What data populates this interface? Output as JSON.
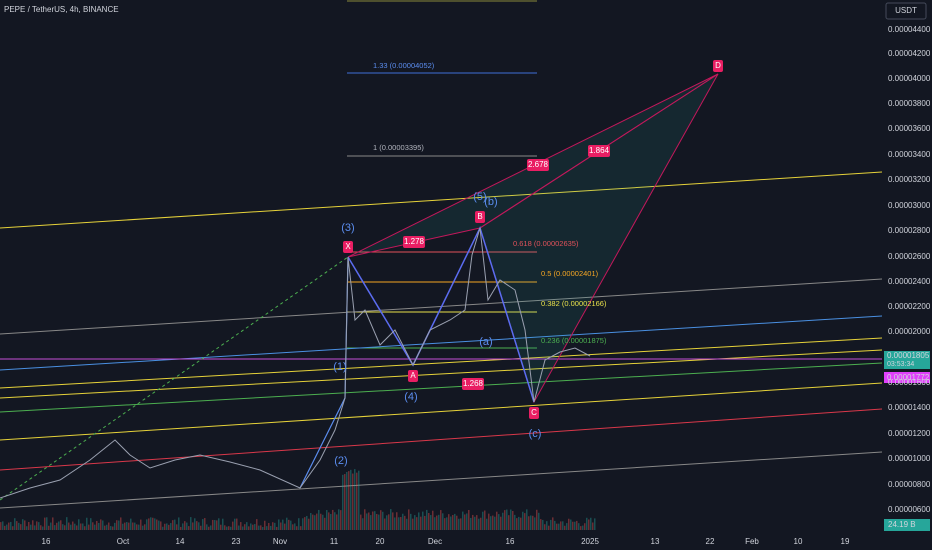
{
  "header": {
    "symbol": "PEPE / TetherUS, 4h, BINANCE",
    "currency": "USDT"
  },
  "price_axis": [
    "0.00004400",
    "0.00004200",
    "0.00004000",
    "0.00003800",
    "0.00003600",
    "0.00003400",
    "0.00003200",
    "0.00003000",
    "0.00002800",
    "0.00002600",
    "0.00002400",
    "0.00002200",
    "0.00002000",
    "0.00001600",
    "0.00001400",
    "0.00001200",
    "0.00001000",
    "0.00000800",
    "0.00000600"
  ],
  "price_tags": {
    "last": "0.00001805",
    "countdown": "03:53:34",
    "level": "0.00001772",
    "volume": "24.19 B"
  },
  "time_axis": [
    "16",
    "Oct",
    "14",
    "23",
    "Nov",
    "11",
    "20",
    "Dec",
    "16",
    "2025",
    "13",
    "22",
    "Feb",
    "10",
    "19"
  ],
  "fib_levels": [
    "1.33 (0.00004052)",
    "1 (0.00003395)",
    "0.618 (0.00002635)",
    "0.5 (0.00002401)",
    "0.382 (0.00002166)",
    "0.236 (0.00001875)"
  ],
  "pattern_points": [
    "X",
    "A",
    "B",
    "C",
    "D"
  ],
  "ratios": [
    "1.278",
    "2.678",
    "1.864",
    "1.268"
  ],
  "waves": [
    "(3)",
    "(5)",
    "(b)",
    "(1)",
    "(a)",
    "(4)",
    "(2)",
    "(c)"
  ]
}
